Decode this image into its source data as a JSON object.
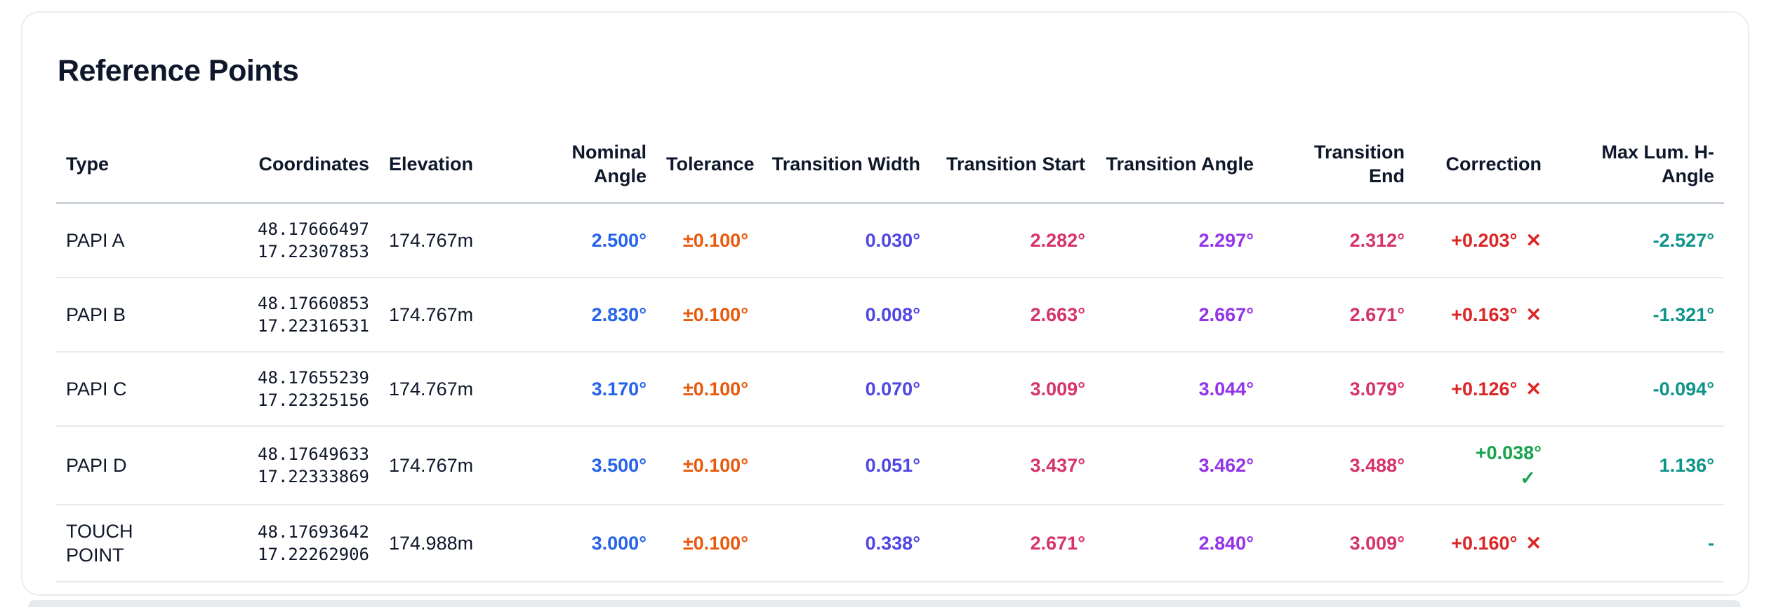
{
  "colors": {
    "dark": "#0f172a",
    "blue": "#2563eb",
    "orange": "#e8590c",
    "indigo": "#4f46e5",
    "pink": "#d6336c",
    "purple": "#9333ea",
    "red": "#dc2626",
    "green": "#16a34a",
    "teal": "#0d9488"
  },
  "icons": {
    "pass": "✓",
    "fail": "✕"
  },
  "card": {
    "title": "Reference Points"
  },
  "table": {
    "columns": [
      {
        "key": "type",
        "label": "Type",
        "align": "left",
        "color": "dark"
      },
      {
        "key": "coordinates",
        "label": "Coordinates",
        "align": "right",
        "color": "dark"
      },
      {
        "key": "elevation",
        "label": "Elevation",
        "align": "left",
        "color": "dark"
      },
      {
        "key": "nominal_angle",
        "label": "Nominal Angle",
        "align": "right",
        "color": "blue"
      },
      {
        "key": "tolerance",
        "label": "Tolerance",
        "align": "right",
        "color": "orange"
      },
      {
        "key": "transition_width",
        "label": "Transition Width",
        "align": "right",
        "color": "indigo"
      },
      {
        "key": "transition_start",
        "label": "Transition Start",
        "align": "right",
        "color": "pink"
      },
      {
        "key": "transition_angle",
        "label": "Transition Angle",
        "align": "right",
        "color": "purple"
      },
      {
        "key": "transition_end",
        "label": "Transition End",
        "align": "right",
        "color": "pink"
      },
      {
        "key": "correction",
        "label": "Correction",
        "align": "right"
      },
      {
        "key": "max_lum_h_angle",
        "label": "Max Lum. H-Angle",
        "align": "right",
        "color": "teal"
      }
    ],
    "rows": [
      {
        "type": "PAPI A",
        "coordinates": [
          "48.17666497",
          "17.22307853"
        ],
        "elevation": "174.767m",
        "nominal_angle": "2.500°",
        "tolerance": "±0.100°",
        "transition_width": "0.030°",
        "transition_start": "2.282°",
        "transition_angle": "2.297°",
        "transition_end": "2.312°",
        "correction": {
          "value": "+0.203°",
          "status": "fail"
        },
        "max_lum_h_angle": "-2.527°"
      },
      {
        "type": "PAPI B",
        "coordinates": [
          "48.17660853",
          "17.22316531"
        ],
        "elevation": "174.767m",
        "nominal_angle": "2.830°",
        "tolerance": "±0.100°",
        "transition_width": "0.008°",
        "transition_start": "2.663°",
        "transition_angle": "2.667°",
        "transition_end": "2.671°",
        "correction": {
          "value": "+0.163°",
          "status": "fail"
        },
        "max_lum_h_angle": "-1.321°"
      },
      {
        "type": "PAPI C",
        "coordinates": [
          "48.17655239",
          "17.22325156"
        ],
        "elevation": "174.767m",
        "nominal_angle": "3.170°",
        "tolerance": "±0.100°",
        "transition_width": "0.070°",
        "transition_start": "3.009°",
        "transition_angle": "3.044°",
        "transition_end": "3.079°",
        "correction": {
          "value": "+0.126°",
          "status": "fail"
        },
        "max_lum_h_angle": "-0.094°"
      },
      {
        "type": "PAPI D",
        "coordinates": [
          "48.17649633",
          "17.22333869"
        ],
        "elevation": "174.767m",
        "nominal_angle": "3.500°",
        "tolerance": "±0.100°",
        "transition_width": "0.051°",
        "transition_start": "3.437°",
        "transition_angle": "3.462°",
        "transition_end": "3.488°",
        "correction": {
          "value": "+0.038°",
          "status": "pass"
        },
        "max_lum_h_angle": "1.136°"
      },
      {
        "type": "TOUCH POINT",
        "coordinates": [
          "48.17693642",
          "17.22262906"
        ],
        "elevation": "174.988m",
        "nominal_angle": "3.000°",
        "tolerance": "±0.100°",
        "transition_width": "0.338°",
        "transition_start": "2.671°",
        "transition_angle": "2.840°",
        "transition_end": "3.009°",
        "correction": {
          "value": "+0.160°",
          "status": "fail"
        },
        "max_lum_h_angle": "-"
      }
    ]
  }
}
